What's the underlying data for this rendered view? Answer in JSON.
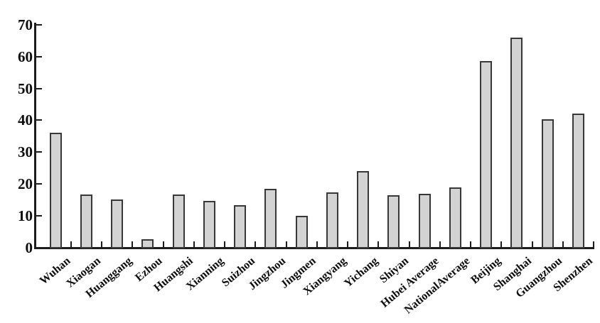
{
  "figure": {
    "background": "#ffffff",
    "axis_color": "#1c1c1c",
    "bar_fill": "#d3d3d3",
    "bar_border": "#383838",
    "text_color": "#0d0d0d"
  },
  "chart_data": {
    "type": "bar",
    "title": "",
    "xlabel": "",
    "ylabel": "",
    "categories": [
      "Wuhan",
      "Xiaogan",
      "Huanggang",
      "Ezhou",
      "Huangshi",
      "Xianning",
      "Suizhou",
      "Jingzhou",
      "Jingmen",
      "Xiangyang",
      "Yichang",
      "Shiyan",
      "Hubei Average",
      "NationalAverage",
      "Beijing",
      "Shanghai",
      "Guangzhou",
      "Shenzhen"
    ],
    "values": [
      35.9,
      16.4,
      15.0,
      2.4,
      16.4,
      14.5,
      13.2,
      18.3,
      9.8,
      17.2,
      23.9,
      16.3,
      16.7,
      18.6,
      58.3,
      65.8,
      40.1,
      41.8
    ],
    "ylim": [
      0,
      70
    ],
    "ytick_step": 10,
    "ytick_labels": [
      "0",
      "10",
      "20",
      "30",
      "40",
      "50",
      "60",
      "70"
    ],
    "grid": false,
    "legend": "none",
    "bar_orientation": "vertical",
    "xtick_label_rotation_deg": 40,
    "tick_direction": "in"
  }
}
